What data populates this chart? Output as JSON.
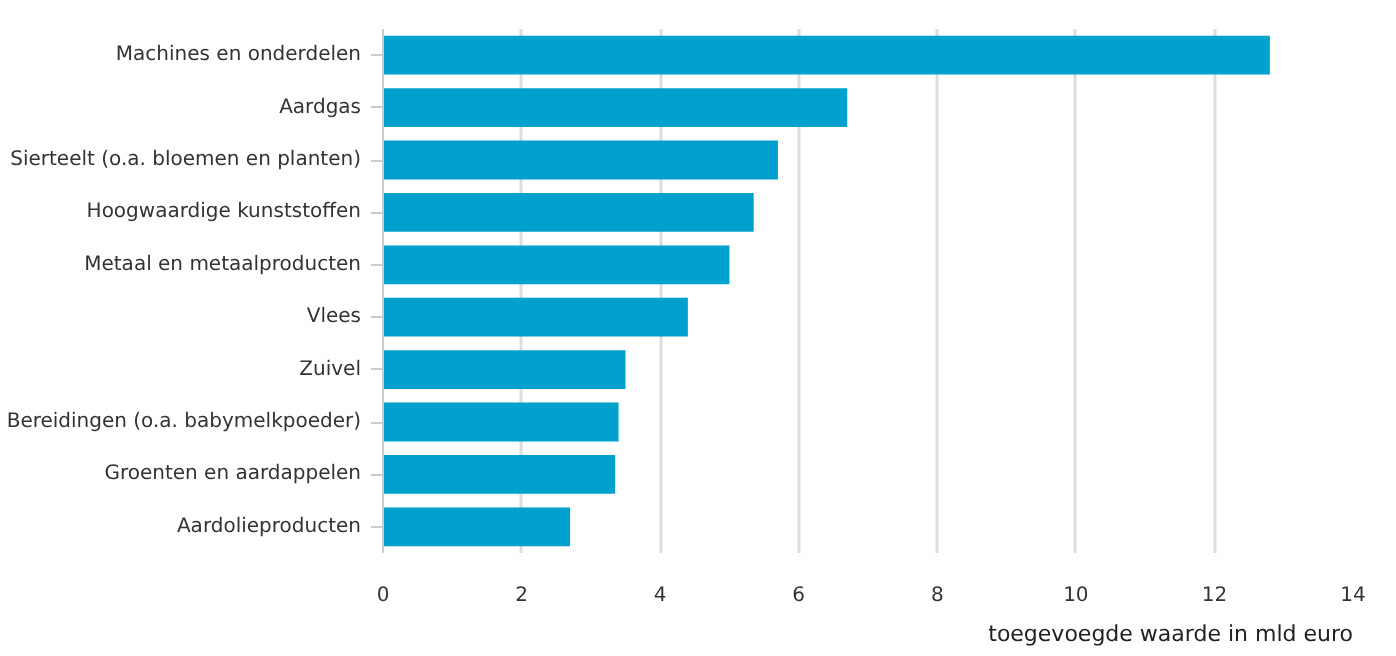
{
  "chart_data": {
    "type": "bar",
    "orientation": "horizontal",
    "categories": [
      "Machines en onderdelen",
      "Aardgas",
      "Sierteelt (o.a. bloemen en planten)",
      "Hoogwaardige kunststoffen",
      "Metaal en metaalproducten",
      "Vlees",
      "Zuivel",
      "Bereidingen (o.a. babymelkpoeder)",
      "Groenten en aardappelen",
      "Aardolieproducten"
    ],
    "values": [
      12.8,
      6.7,
      5.7,
      5.35,
      5.0,
      4.4,
      3.5,
      3.4,
      3.35,
      2.7
    ],
    "color": "#00a1cd",
    "xlabel": "toegevoegde waarde in mld euro",
    "xlim": [
      0,
      14
    ],
    "xticks": [
      0,
      2,
      4,
      6,
      8,
      10,
      12,
      14
    ],
    "grid": "x"
  }
}
